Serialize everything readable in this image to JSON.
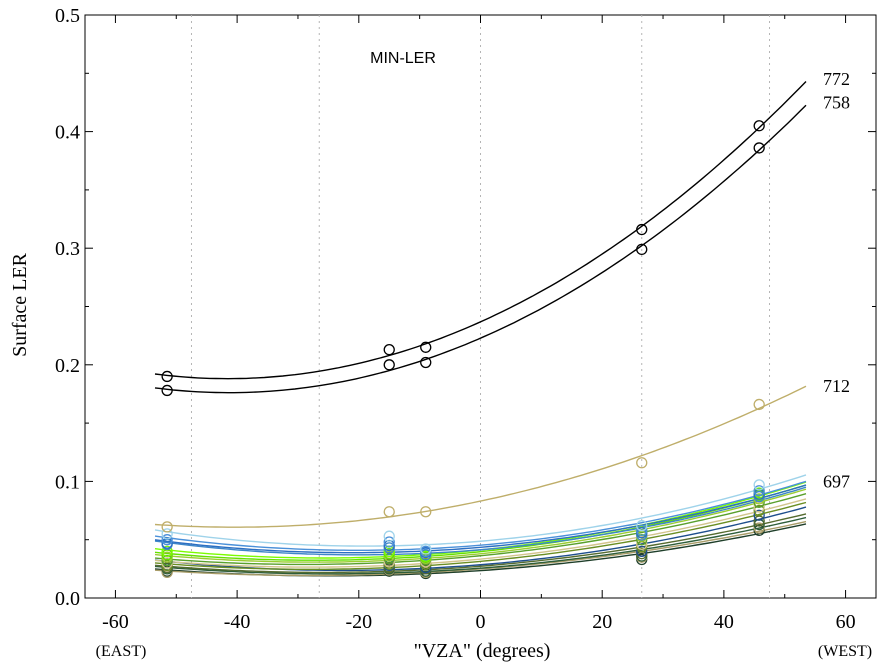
{
  "chart_data": {
    "type": "line",
    "title": "",
    "annotation": "MIN-LER",
    "xlabel": "\"VZA\" (degrees)",
    "ylabel": "Surface LER",
    "xlim": [
      -65,
      65
    ],
    "ylim": [
      0.0,
      0.5
    ],
    "xticks": [
      -60,
      -40,
      -20,
      0,
      20,
      40,
      60
    ],
    "xtick_labels": [
      "-60",
      "-40",
      "-20",
      "0",
      "20",
      "40",
      "60"
    ],
    "yticks": [
      0.0,
      0.1,
      0.2,
      0.3,
      0.4,
      0.5
    ],
    "ytick_labels": [
      "0.0",
      "0.1",
      "0.2",
      "0.3",
      "0.4",
      "0.5"
    ],
    "x_direction_labels": {
      "left": "(EAST)",
      "right": "(WEST)"
    },
    "vertical_reference_lines": [
      -47.5,
      -26.5,
      0,
      26.5,
      47.5
    ],
    "grid": false,
    "legend": "none",
    "x_observed": [
      -51.5,
      -15,
      -9,
      26.5,
      45.8
    ],
    "fit_range": [
      -53.5,
      53.5
    ],
    "series": [
      {
        "name": "772",
        "color": "#000000",
        "values": [
          0.19,
          0.213,
          0.215,
          0.316,
          0.405
        ],
        "label_y": 0.445
      },
      {
        "name": "758",
        "color": "#000000",
        "values": [
          0.178,
          0.2,
          0.202,
          0.299,
          0.386
        ],
        "label_y": 0.425
      },
      {
        "name": "712",
        "color": "#bfae6a",
        "values": [
          0.061,
          0.074,
          0.074,
          0.116,
          0.166
        ],
        "label_y": 0.182
      },
      {
        "name": "697",
        "color": "#9fd3ea",
        "values": [
          0.055,
          0.053,
          0.042,
          0.062,
          0.097
        ],
        "label_y": 0.1
      },
      {
        "name": "",
        "color": "#4a90d9",
        "values": [
          0.05,
          0.048,
          0.04,
          0.058,
          0.092
        ]
      },
      {
        "name": "",
        "color": "#2c6fc2",
        "values": [
          0.047,
          0.045,
          0.039,
          0.056,
          0.089
        ]
      },
      {
        "name": "",
        "color": "#3e86c8",
        "values": [
          0.046,
          0.043,
          0.037,
          0.054,
          0.087
        ]
      },
      {
        "name": "",
        "color": "#7cfc00",
        "values": [
          0.04,
          0.04,
          0.036,
          0.058,
          0.09
        ]
      },
      {
        "name": "",
        "color": "#66e000",
        "values": [
          0.037,
          0.038,
          0.035,
          0.056,
          0.088
        ]
      },
      {
        "name": "",
        "color": "#9acd32",
        "values": [
          0.035,
          0.036,
          0.034,
          0.053,
          0.085
        ]
      },
      {
        "name": "",
        "color": "#5aa02c",
        "values": [
          0.032,
          0.034,
          0.033,
          0.05,
          0.082
        ]
      },
      {
        "name": "",
        "color": "#d2c48c",
        "values": [
          0.03,
          0.031,
          0.031,
          0.046,
          0.078
        ]
      },
      {
        "name": "",
        "color": "#6b8e23",
        "values": [
          0.028,
          0.029,
          0.029,
          0.044,
          0.075
        ]
      },
      {
        "name": "",
        "color": "#1e4e8c",
        "values": [
          0.03,
          0.028,
          0.026,
          0.04,
          0.071
        ]
      },
      {
        "name": "",
        "color": "#556b2f",
        "values": [
          0.026,
          0.026,
          0.025,
          0.038,
          0.066
        ]
      },
      {
        "name": "",
        "color": "#2e5e3a",
        "values": [
          0.025,
          0.025,
          0.023,
          0.036,
          0.063
        ]
      },
      {
        "name": "",
        "color": "#a89c68",
        "values": [
          0.022,
          0.024,
          0.022,
          0.035,
          0.06
        ]
      },
      {
        "name": "",
        "color": "#1f3f2a",
        "values": [
          0.023,
          0.023,
          0.021,
          0.033,
          0.058
        ]
      }
    ]
  }
}
